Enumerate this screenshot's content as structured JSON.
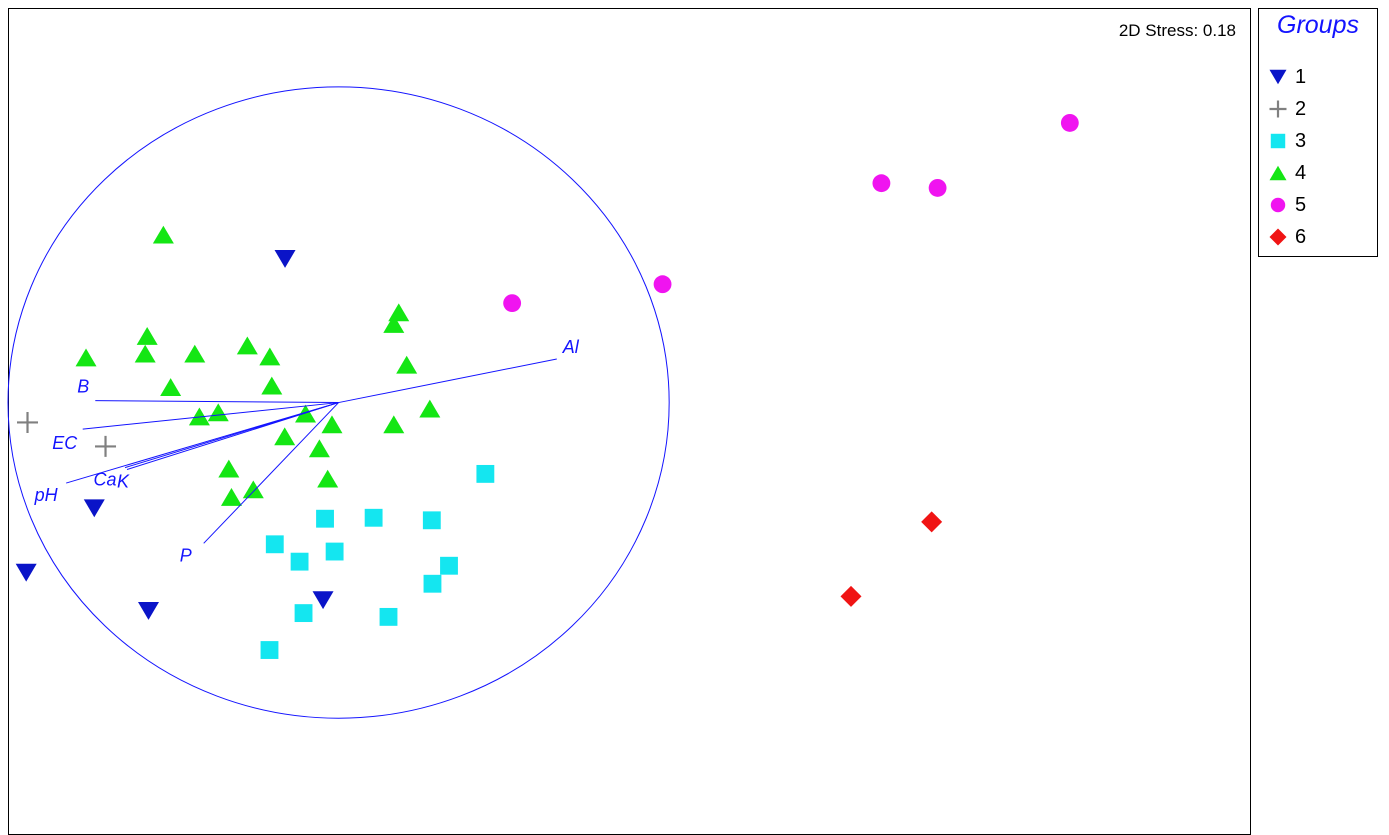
{
  "stress_text": "2D Stress: 0.18",
  "legend": {
    "title": "Groups",
    "title_color": "#1414ff",
    "items": [
      {
        "label": "1",
        "symbol": "triangle-down",
        "color": "#0a14c8"
      },
      {
        "label": "2",
        "symbol": "plus",
        "color": "#808080"
      },
      {
        "label": "3",
        "symbol": "square",
        "color": "#14e6f0"
      },
      {
        "label": "4",
        "symbol": "triangle-up",
        "color": "#14e614"
      },
      {
        "label": "5",
        "symbol": "circle",
        "color": "#f014f0"
      },
      {
        "label": "6",
        "symbol": "diamond",
        "color": "#f01414"
      }
    ]
  },
  "chart_data": {
    "type": "scatter",
    "title": "",
    "xlabel": "",
    "ylabel": "",
    "xlim": [
      -1.0,
      2.76
    ],
    "ylim": [
      -1.37,
      1.25
    ],
    "grid": false,
    "legend_position": "right",
    "series": [
      {
        "name": "1",
        "points": [
          [
            -0.162,
            0.455
          ],
          [
            -0.739,
            -0.335
          ],
          [
            -0.945,
            -0.539
          ],
          [
            -0.575,
            -0.66
          ],
          [
            -0.047,
            -0.626
          ]
        ]
      },
      {
        "name": "2",
        "points": [
          [
            -0.941,
            -0.063
          ],
          [
            -0.705,
            -0.139
          ]
        ]
      },
      {
        "name": "3",
        "points": [
          [
            0.444,
            -0.226
          ],
          [
            -0.041,
            -0.368
          ],
          [
            0.106,
            -0.365
          ],
          [
            0.282,
            -0.373
          ],
          [
            -0.193,
            -0.449
          ],
          [
            -0.012,
            -0.472
          ],
          [
            -0.118,
            -0.504
          ],
          [
            0.334,
            -0.517
          ],
          [
            0.284,
            -0.574
          ],
          [
            -0.106,
            -0.667
          ],
          [
            0.151,
            -0.679
          ],
          [
            -0.209,
            -0.784
          ]
        ]
      },
      {
        "name": "4",
        "points": [
          [
            -0.53,
            0.532
          ],
          [
            0.182,
            0.286
          ],
          [
            0.167,
            0.249
          ],
          [
            -0.579,
            0.211
          ],
          [
            -0.276,
            0.181
          ],
          [
            -0.764,
            0.143
          ],
          [
            -0.585,
            0.155
          ],
          [
            -0.435,
            0.155
          ],
          [
            -0.208,
            0.146
          ],
          [
            0.206,
            0.12
          ],
          [
            -0.508,
            0.049
          ],
          [
            -0.202,
            0.054
          ],
          [
            0.276,
            -0.019
          ],
          [
            -0.421,
            -0.044
          ],
          [
            -0.364,
            -0.031
          ],
          [
            -0.1,
            -0.035
          ],
          [
            0.167,
            -0.069
          ],
          [
            -0.02,
            -0.069
          ],
          [
            -0.163,
            -0.107
          ],
          [
            -0.058,
            -0.145
          ],
          [
            -0.332,
            -0.209
          ],
          [
            -0.033,
            -0.241
          ],
          [
            -0.258,
            -0.275
          ],
          [
            -0.324,
            -0.299
          ]
        ]
      },
      {
        "name": "5",
        "points": [
          [
            2.212,
            0.886
          ],
          [
            1.642,
            0.695
          ],
          [
            1.812,
            0.68
          ],
          [
            0.98,
            0.375
          ],
          [
            0.525,
            0.315
          ]
        ]
      },
      {
        "name": "6",
        "points": [
          [
            1.794,
            -0.378
          ],
          [
            1.55,
            -0.614
          ]
        ]
      }
    ],
    "circle": {
      "center": [
        0,
        0
      ],
      "radius": 1.0
    },
    "vectors": [
      {
        "name": "Al",
        "end": [
          0.66,
          0.138
        ]
      },
      {
        "name": "B",
        "end": [
          -0.736,
          0.006
        ]
      },
      {
        "name": "EC",
        "end": [
          -0.774,
          -0.084
        ]
      },
      {
        "name": "pH",
        "end": [
          -0.824,
          -0.255
        ]
      },
      {
        "name": "Ca",
        "end": [
          -0.646,
          -0.206
        ]
      },
      {
        "name": "K",
        "end": [
          -0.64,
          -0.212
        ]
      },
      {
        "name": "P",
        "end": [
          -0.408,
          -0.446
        ]
      }
    ]
  }
}
